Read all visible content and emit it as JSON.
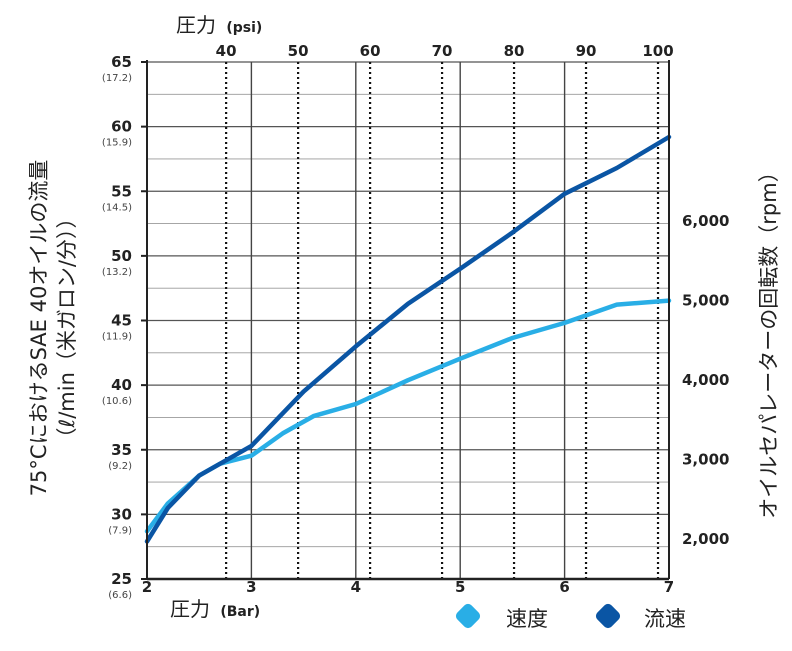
{
  "chart_data": {
    "type": "line",
    "top_axis": {
      "title_main": "圧力",
      "title_unit": "(psi)",
      "ticks": [
        40,
        50,
        60,
        70,
        80,
        90,
        100
      ]
    },
    "x": [
      2,
      2.5,
      3,
      3.5,
      4,
      4.5,
      5,
      5.5,
      6,
      6.5,
      7
    ],
    "xlabel_main": "圧力",
    "xlabel_unit": "(Bar)",
    "xlim": [
      2,
      7
    ],
    "x_ticks": [
      2,
      3,
      4,
      5,
      6,
      7
    ],
    "ylabel_left_line1": "75°CにおけるSAE 40オイルの流量",
    "ylabel_left_line2": "（ℓ/min（米ガロン/分））",
    "ylim": [
      25,
      65
    ],
    "y_ticks": [
      {
        "value": 25,
        "label": "25",
        "sub": "(6.6)"
      },
      {
        "value": 30,
        "label": "30",
        "sub": "(7.9)"
      },
      {
        "value": 35,
        "label": "35",
        "sub": "(9.2)"
      },
      {
        "value": 40,
        "label": "40",
        "sub": "(10.6)"
      },
      {
        "value": 45,
        "label": "45",
        "sub": "(11.9)"
      },
      {
        "value": 50,
        "label": "50",
        "sub": "(13.2)"
      },
      {
        "value": 55,
        "label": "55",
        "sub": "(14.5)"
      },
      {
        "value": 60,
        "label": "60",
        "sub": "(15.9)"
      },
      {
        "value": 65,
        "label": "65",
        "sub": "(17.2)"
      }
    ],
    "ylabel_right": "オイルセパレーターの回転数（rpm）",
    "y2lim": [
      1500,
      8000
    ],
    "y2_ticks": [
      {
        "value": 2000,
        "label": "2,000"
      },
      {
        "value": 3000,
        "label": "3,000"
      },
      {
        "value": 4000,
        "label": "4,000"
      },
      {
        "value": 5000,
        "label": "5,000"
      },
      {
        "value": 6000,
        "label": "6,000"
      }
    ],
    "series": [
      {
        "name": "速度",
        "axis": "right",
        "color": "#29aee6",
        "points": [
          [
            2,
            2100
          ],
          [
            2.2,
            2450
          ],
          [
            2.5,
            2800
          ],
          [
            2.7,
            2950
          ],
          [
            3,
            3050
          ],
          [
            3.3,
            3330
          ],
          [
            3.6,
            3550
          ],
          [
            4,
            3700
          ],
          [
            4.5,
            4000
          ],
          [
            5,
            4270
          ],
          [
            5.5,
            4530
          ],
          [
            6,
            4720
          ],
          [
            6.5,
            4950
          ],
          [
            7,
            5000
          ]
        ]
      },
      {
        "name": "流速",
        "axis": "left",
        "color": "#0a55a4",
        "points": [
          [
            2,
            27.9
          ],
          [
            2.2,
            30.5
          ],
          [
            2.5,
            33.0
          ],
          [
            3,
            35.3
          ],
          [
            3.5,
            39.5
          ],
          [
            4,
            43.0
          ],
          [
            4.5,
            46.3
          ],
          [
            5,
            49.0
          ],
          [
            5.5,
            51.8
          ],
          [
            6,
            54.8
          ],
          [
            6.5,
            56.8
          ],
          [
            7,
            59.2
          ]
        ]
      }
    ],
    "legend": {
      "position": "bottom-right"
    },
    "grid": true
  }
}
